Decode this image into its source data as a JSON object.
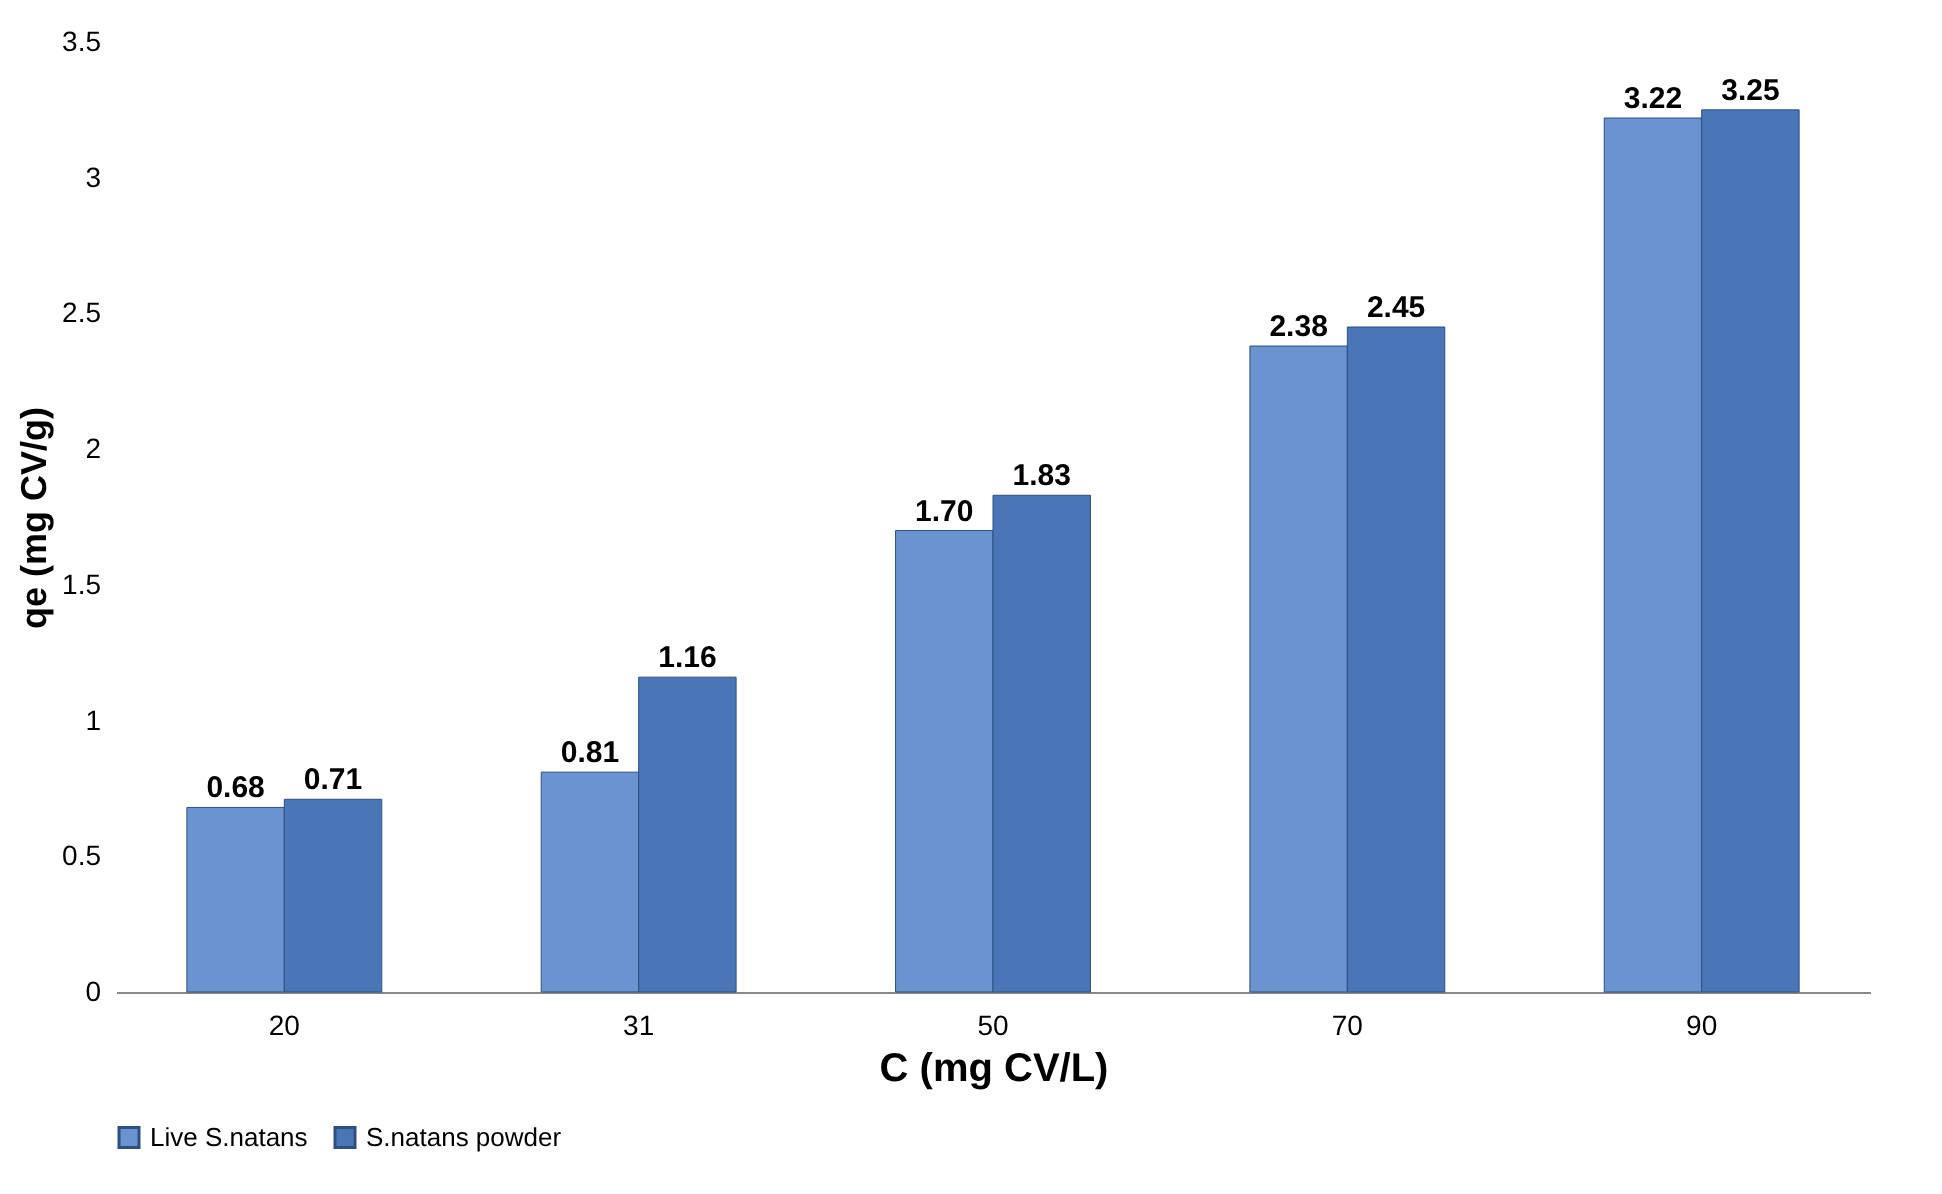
{
  "chart_data": {
    "type": "bar",
    "xlabel": "C (mg CV/L)",
    "ylabel": "qe (mg CV/g)",
    "categories": [
      "20",
      "31",
      "50",
      "70",
      "90"
    ],
    "series": [
      {
        "name": "Live S.natans",
        "color": "#6a93cf",
        "values": [
          0.68,
          0.81,
          1.7,
          2.38,
          3.22
        ],
        "value_labels": [
          "0.68",
          "0.81",
          "1.70",
          "2.38",
          "3.22"
        ]
      },
      {
        "name": "S.natans powder",
        "color": "#4a76b8",
        "values": [
          0.71,
          1.16,
          1.83,
          2.45,
          3.25
        ],
        "value_labels": [
          "0.71",
          "1.16",
          "1.83",
          "2.45",
          "3.25"
        ]
      }
    ],
    "ylim": [
      0,
      3.5
    ],
    "yticks": [
      0,
      0.5,
      1,
      1.5,
      2,
      2.5,
      3,
      3.5
    ],
    "grid": false,
    "legend": "bottom"
  }
}
